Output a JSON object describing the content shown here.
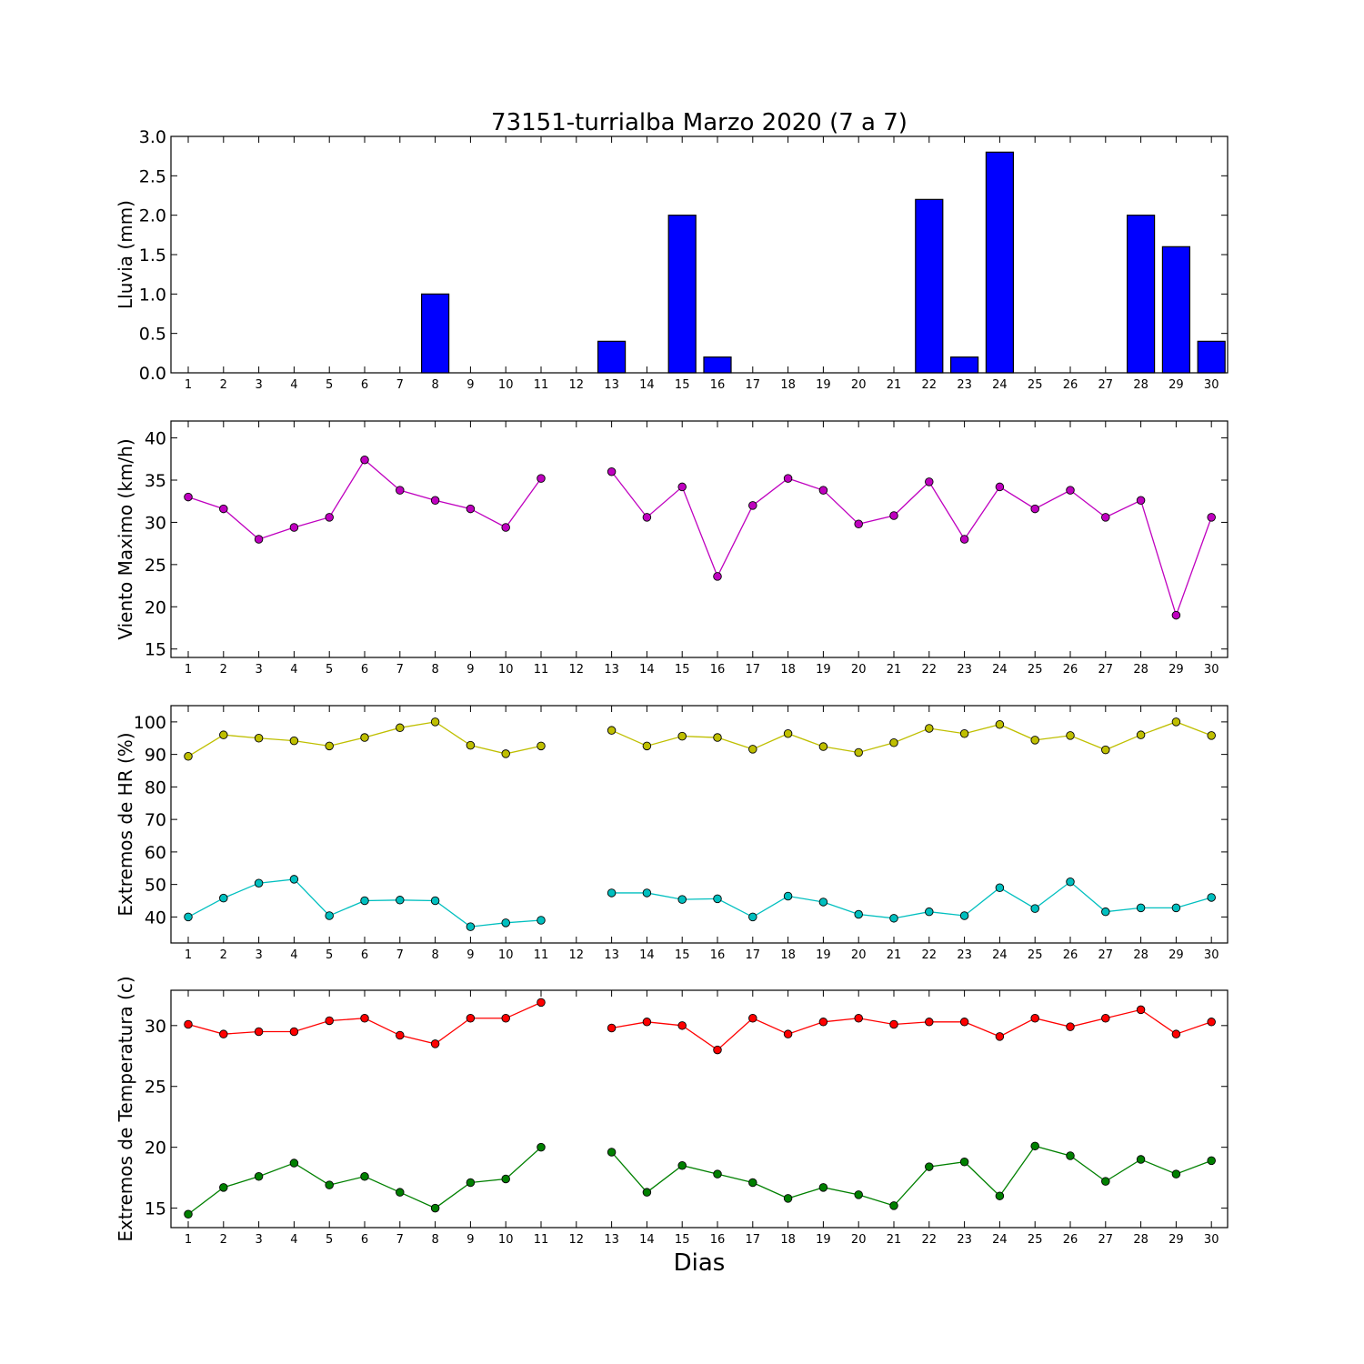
{
  "figure": {
    "title": "73151-turrialba Marzo 2020  (7 a 7)",
    "xlabel": "Dias"
  },
  "chart_data": [
    {
      "type": "bar",
      "ylabel": "Lluvia (mm)",
      "ylim": [
        0,
        3.0
      ],
      "yticks": [
        "0.0",
        "0.5",
        "1.0",
        "1.5",
        "2.0",
        "2.5",
        "3.0"
      ],
      "categories": [
        "1",
        "2",
        "3",
        "4",
        "5",
        "6",
        "7",
        "8",
        "9",
        "10",
        "11",
        "12",
        "13",
        "14",
        "15",
        "16",
        "17",
        "18",
        "19",
        "20",
        "21",
        "22",
        "23",
        "24",
        "25",
        "26",
        "27",
        "28",
        "29",
        "30"
      ],
      "series": [
        {
          "color": "#0000ff",
          "values": [
            0,
            0,
            0,
            0,
            0,
            0,
            0,
            1.0,
            0,
            0,
            0,
            0,
            0.4,
            0,
            2.0,
            0.2,
            0,
            0,
            0,
            0,
            0,
            2.2,
            0.2,
            2.8,
            0,
            0,
            0,
            2.0,
            1.6,
            0.4
          ]
        }
      ]
    },
    {
      "type": "line",
      "ylabel": "Viento Maximo (km/h)",
      "ylim": [
        14,
        42
      ],
      "yticks": [
        "15",
        "20",
        "25",
        "30",
        "35",
        "40"
      ],
      "categories": [
        "1",
        "2",
        "3",
        "4",
        "5",
        "6",
        "7",
        "8",
        "9",
        "10",
        "11",
        "12",
        "13",
        "14",
        "15",
        "16",
        "17",
        "18",
        "19",
        "20",
        "21",
        "22",
        "23",
        "24",
        "25",
        "26",
        "27",
        "28",
        "29",
        "30"
      ],
      "series": [
        {
          "color": "#bf00bf",
          "values": [
            33.0,
            31.6,
            28.0,
            29.4,
            30.6,
            37.4,
            33.8,
            32.6,
            31.6,
            29.4,
            35.2,
            null,
            36.0,
            30.6,
            34.2,
            23.6,
            32.0,
            35.2,
            33.8,
            29.8,
            30.8,
            34.8,
            28.0,
            34.2,
            31.6,
            33.8,
            30.6,
            32.6,
            19.0,
            30.6
          ]
        }
      ]
    },
    {
      "type": "line",
      "ylabel": "Extremos de HR (%)",
      "ylim": [
        32,
        105
      ],
      "yticks": [
        "40",
        "50",
        "60",
        "70",
        "80",
        "90",
        "100"
      ],
      "categories": [
        "1",
        "2",
        "3",
        "4",
        "5",
        "6",
        "7",
        "8",
        "9",
        "10",
        "11",
        "12",
        "13",
        "14",
        "15",
        "16",
        "17",
        "18",
        "19",
        "20",
        "21",
        "22",
        "23",
        "24",
        "25",
        "26",
        "27",
        "28",
        "29",
        "30"
      ],
      "series": [
        {
          "color": "#bfbf00",
          "values": [
            89.4,
            96.0,
            95.0,
            94.2,
            92.6,
            95.2,
            98.2,
            100.0,
            92.8,
            90.2,
            92.6,
            null,
            97.4,
            92.6,
            95.6,
            95.2,
            91.6,
            96.4,
            92.4,
            90.6,
            93.6,
            98.0,
            96.4,
            99.2,
            94.4,
            95.8,
            91.4,
            96.0,
            100.0,
            95.8
          ]
        },
        {
          "color": "#00bfbf",
          "values": [
            40.0,
            45.8,
            50.4,
            51.6,
            40.4,
            45.0,
            45.2,
            45.0,
            37.0,
            38.2,
            39.0,
            null,
            47.4,
            47.4,
            45.4,
            45.6,
            40.0,
            46.4,
            44.6,
            40.8,
            39.6,
            41.6,
            40.4,
            49.0,
            42.6,
            50.8,
            41.6,
            42.8,
            42.8,
            46.0
          ]
        }
      ]
    },
    {
      "type": "line",
      "ylabel": "Extremos de Temperatura (c)",
      "ylim": [
        13.4,
        32.9
      ],
      "yticks": [
        "15",
        "20",
        "25",
        "30"
      ],
      "categories": [
        "1",
        "2",
        "3",
        "4",
        "5",
        "6",
        "7",
        "8",
        "9",
        "10",
        "11",
        "12",
        "13",
        "14",
        "15",
        "16",
        "17",
        "18",
        "19",
        "20",
        "21",
        "22",
        "23",
        "24",
        "25",
        "26",
        "27",
        "28",
        "29",
        "30"
      ],
      "series": [
        {
          "color": "#ff0000",
          "values": [
            30.1,
            29.3,
            29.5,
            29.5,
            30.4,
            30.6,
            29.2,
            28.5,
            30.6,
            30.6,
            31.9,
            null,
            29.8,
            30.3,
            30.0,
            28.0,
            30.6,
            29.3,
            30.3,
            30.6,
            30.1,
            30.3,
            30.3,
            29.1,
            30.6,
            29.9,
            30.6,
            31.3,
            29.3,
            30.3
          ]
        },
        {
          "color": "#008000",
          "values": [
            14.5,
            16.7,
            17.6,
            18.7,
            16.9,
            17.6,
            16.3,
            15.0,
            17.1,
            17.4,
            20.0,
            null,
            19.6,
            16.3,
            18.5,
            17.8,
            17.1,
            15.8,
            16.7,
            16.1,
            15.2,
            18.4,
            18.8,
            16.0,
            20.1,
            19.3,
            17.2,
            19.0,
            17.8,
            18.9
          ]
        }
      ]
    }
  ]
}
